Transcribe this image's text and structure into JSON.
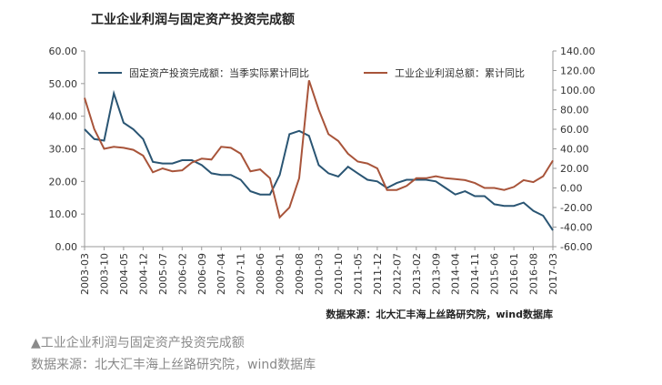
{
  "chart_data": {
    "type": "line",
    "title": "工业企业利润与固定资产投资完成额",
    "source": "数据来源：北大汇丰海上丝路研究院，wind数据库",
    "categories": [
      "2003-03",
      null,
      "2003-10",
      null,
      "2004-05",
      null,
      "2004-12",
      null,
      "2005-07",
      null,
      "2006-02",
      null,
      "2006-09",
      null,
      "2007-04",
      null,
      "2007-11",
      null,
      "2008-06",
      null,
      "2009-01",
      null,
      "2009-08",
      null,
      "2010-03",
      null,
      "2010-10",
      null,
      "2011-05",
      null,
      "2011-12",
      null,
      "2012-07",
      null,
      "2013-02",
      null,
      "2013-09",
      null,
      "2014-04",
      null,
      "2014-11",
      null,
      "2015-06",
      null,
      "2016-01",
      null,
      "2016-08",
      null,
      "2017-03"
    ],
    "series": [
      {
        "name": "固定资产投资完成额：当季实际累计同比",
        "color": "#2a5573",
        "axis": "y",
        "values": [
          36,
          33,
          32.5,
          47,
          38,
          36,
          33,
          26,
          25.5,
          25.5,
          26.5,
          26.5,
          25,
          22.5,
          22,
          22,
          20.5,
          17,
          16,
          16,
          22,
          34.5,
          35.5,
          34,
          25,
          22.5,
          21.5,
          24.5,
          22.5,
          20.5,
          20,
          18,
          19.5,
          20.5,
          20.5,
          20.5,
          20,
          18,
          16,
          17,
          15.5,
          15.5,
          13,
          12.5,
          12.5,
          13.5,
          11,
          9.5,
          5
        ]
      },
      {
        "name": "工业企业利润总额：累计同比",
        "color": "#a8543a",
        "axis": "y2",
        "values": [
          92,
          60,
          40,
          42,
          41,
          39,
          33,
          16,
          20,
          17,
          18,
          26,
          30,
          29,
          42,
          41,
          35,
          17,
          19,
          10,
          -30,
          -20,
          10,
          110,
          80,
          55,
          48,
          35,
          27,
          25,
          20,
          -2,
          -2,
          2,
          10,
          10,
          12,
          10,
          9,
          8,
          5,
          0,
          0,
          -2,
          1,
          8,
          6,
          12,
          28
        ]
      }
    ],
    "ylim": [
      0,
      60
    ],
    "yticks": [
      {
        "value": 0,
        "label": "0.00"
      },
      {
        "value": 10,
        "label": "10.00"
      },
      {
        "value": 20,
        "label": "20.00"
      },
      {
        "value": 30,
        "label": "30.00"
      },
      {
        "value": 40,
        "label": "40.00"
      },
      {
        "value": 50,
        "label": "50.00"
      },
      {
        "value": 60,
        "label": "60.00"
      }
    ],
    "y2lim": [
      -60,
      140
    ],
    "y2ticks": [
      {
        "value": -60,
        "label": "-60.00"
      },
      {
        "value": -40,
        "label": "-40.00"
      },
      {
        "value": -20,
        "label": "-20.00"
      },
      {
        "value": 0,
        "label": "0.00"
      },
      {
        "value": 20,
        "label": "20.00"
      },
      {
        "value": 40,
        "label": "40.00"
      },
      {
        "value": 60,
        "label": "60.00"
      },
      {
        "value": 80,
        "label": "80.00"
      },
      {
        "value": 100,
        "label": "100.00"
      },
      {
        "value": 120,
        "label": "120.00"
      },
      {
        "value": 140,
        "label": "140.00"
      }
    ]
  },
  "captions": [
    "▲工业企业利润与固定资产投资完成额",
    "数据来源：北大汇丰海上丝路研究院，wind数据库"
  ]
}
